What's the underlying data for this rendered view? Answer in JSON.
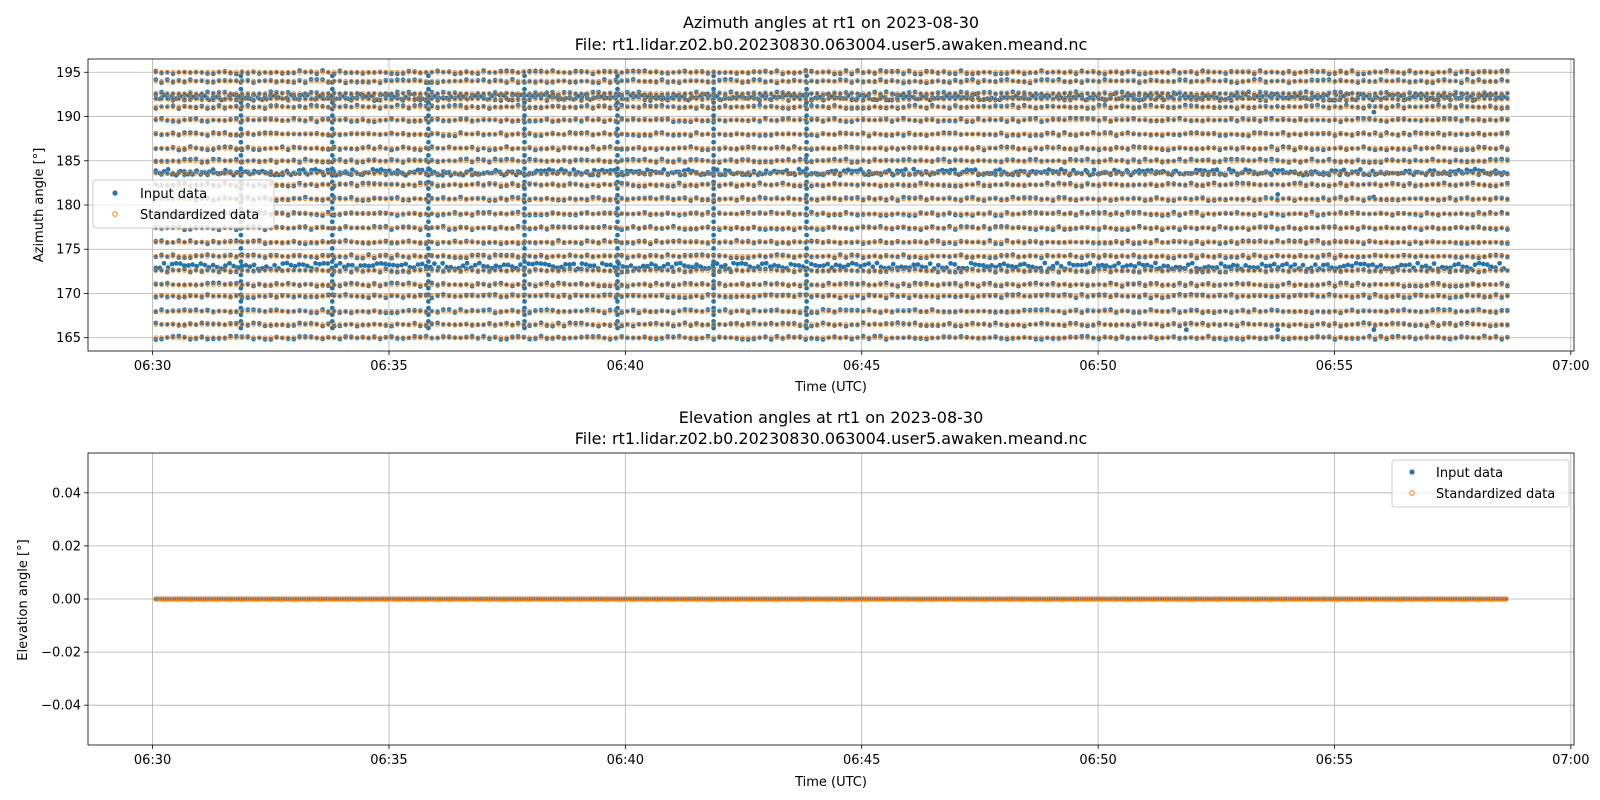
{
  "chart_data": [
    {
      "type": "scatter",
      "title_line1": "Azimuth angles at rt1 on 2023-08-30",
      "title_line2": "File: rt1.lidar.z02.b0.20230830.063004.user5.awaken.meand.nc",
      "xlabel": "Time (UTC)",
      "ylabel": "Azimuth angle [°]",
      "xlim": [
        "06:28:38",
        "07:00:04"
      ],
      "ylim": [
        163.5,
        196.5
      ],
      "x_ticks": [
        "06:30",
        "06:35",
        "06:40",
        "06:45",
        "06:50",
        "06:55",
        "07:00"
      ],
      "y_ticks": [
        "165",
        "170",
        "175",
        "180",
        "185",
        "190",
        "195"
      ],
      "y_tick_values": [
        165,
        170,
        175,
        180,
        185,
        190,
        195
      ],
      "grid": true,
      "legend": "center-left",
      "time_range": [
        "06:30:04",
        "06:58:40"
      ],
      "scan_azimuth_levels": [
        165.0,
        166.5,
        168.0,
        169.7,
        171.0,
        172.6,
        174.2,
        175.8,
        177.4,
        179.0,
        180.7,
        182.3,
        183.6,
        185.0,
        186.4,
        188.0,
        189.6,
        191.1,
        192.0,
        192.6,
        194.0,
        195.0
      ],
      "input_only_levels": [
        173.1,
        183.7,
        192.2
      ],
      "sweep_transition_times": [
        "06:31:52",
        "06:33:48",
        "06:35:50",
        "06:37:52",
        "06:39:50",
        "06:41:52",
        "06:43:50"
      ],
      "series": [
        {
          "name": "Input data",
          "marker": "filled-circle",
          "color": "#1f77b4"
        },
        {
          "name": "Standardized data",
          "marker": "open-circle",
          "color": "#ff7f0e"
        }
      ]
    },
    {
      "type": "scatter",
      "title_line1": "Elevation angles at rt1 on 2023-08-30",
      "title_line2": "File: rt1.lidar.z02.b0.20230830.063004.user5.awaken.meand.nc",
      "xlabel": "Time (UTC)",
      "ylabel": "Elevation angle [°]",
      "xlim": [
        "06:28:38",
        "07:00:04"
      ],
      "ylim": [
        -0.055,
        0.055
      ],
      "x_ticks": [
        "06:30",
        "06:35",
        "06:40",
        "06:45",
        "06:50",
        "06:55",
        "07:00"
      ],
      "y_ticks": [
        "0.04",
        "0.02",
        "0.00",
        "−0.02",
        "−0.04"
      ],
      "y_tick_values": [
        0.04,
        0.02,
        0.0,
        -0.02,
        -0.04
      ],
      "grid": true,
      "legend": "top-right",
      "time_range": [
        "06:30:04",
        "06:58:40"
      ],
      "elevation_value": 0.0,
      "series": [
        {
          "name": "Input data",
          "marker": "filled-circle",
          "color": "#1f77b4"
        },
        {
          "name": "Standardized data",
          "marker": "open-circle",
          "color": "#ff7f0e"
        }
      ]
    }
  ]
}
